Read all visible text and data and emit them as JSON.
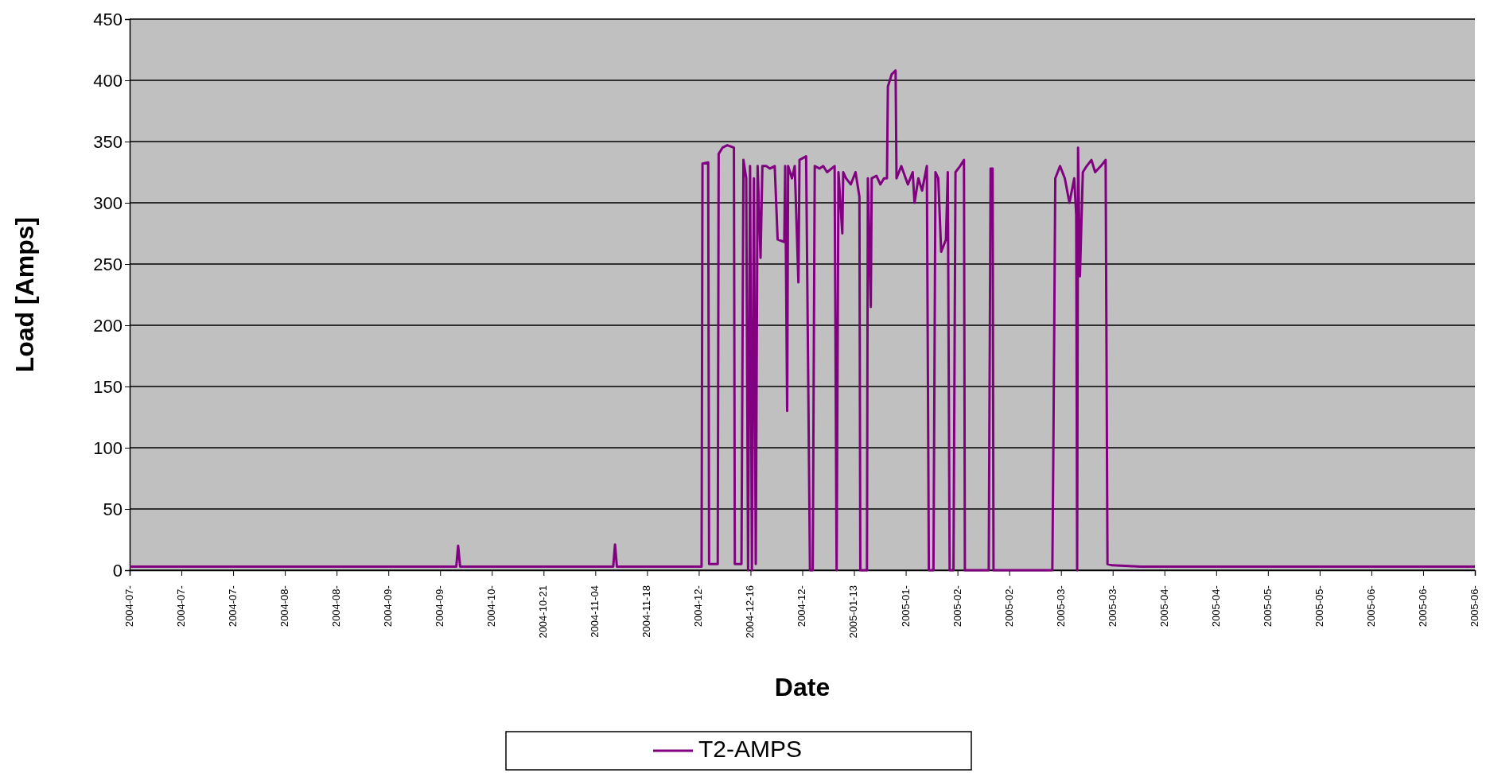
{
  "chart_data": {
    "type": "line",
    "xlabel": "Date",
    "ylabel": "Load [Amps]",
    "xlim": [
      "2004-07-01",
      "2005-06-30"
    ],
    "ylim": [
      0,
      450
    ],
    "yticks": [
      0,
      50,
      100,
      150,
      200,
      250,
      300,
      350,
      400,
      450
    ],
    "xticks": [
      {
        "value": "2004-07-01",
        "label": "2004-07-"
      },
      {
        "value": "2004-07-15",
        "label": "2004-07-"
      },
      {
        "value": "2004-07-29",
        "label": "2004-07-"
      },
      {
        "value": "2004-08-12",
        "label": "2004-08-"
      },
      {
        "value": "2004-08-26",
        "label": "2004-08-"
      },
      {
        "value": "2004-09-09",
        "label": "2004-09-"
      },
      {
        "value": "2004-09-23",
        "label": "2004-09-"
      },
      {
        "value": "2004-10-07",
        "label": "2004-10-"
      },
      {
        "value": "2004-10-21",
        "label": "2004-10-21"
      },
      {
        "value": "2004-11-04",
        "label": "2004-11-04"
      },
      {
        "value": "2004-11-18",
        "label": "2004-11-18"
      },
      {
        "value": "2004-12-02",
        "label": "2004-12-"
      },
      {
        "value": "2004-12-16",
        "label": "2004-12-16"
      },
      {
        "value": "2004-12-30",
        "label": "2004-12-"
      },
      {
        "value": "2005-01-13",
        "label": "2005-01-13"
      },
      {
        "value": "2005-01-27",
        "label": "2005-01-"
      },
      {
        "value": "2005-02-10",
        "label": "2005-02-"
      },
      {
        "value": "2005-02-24",
        "label": "2005-02-"
      },
      {
        "value": "2005-03-10",
        "label": "2005-03-"
      },
      {
        "value": "2005-03-24",
        "label": "2005-03-"
      },
      {
        "value": "2005-04-07",
        "label": "2005-04-"
      },
      {
        "value": "2005-04-21",
        "label": "2005-04-"
      },
      {
        "value": "2005-05-05",
        "label": "2005-05-"
      },
      {
        "value": "2005-05-19",
        "label": "2005-05-"
      },
      {
        "value": "2005-06-02",
        "label": "2005-06-"
      },
      {
        "value": "2005-06-16",
        "label": "2005-06-"
      },
      {
        "value": "2005-06-30",
        "label": "2005-06-"
      }
    ],
    "grid": "y",
    "legend": "bottom",
    "line_style": "solid",
    "x": [
      "2004-07-01T00:00",
      "2004-09-27T09:00",
      "2004-09-27T21:00",
      "2004-09-28T10:00",
      "2004-11-08T20:00",
      "2004-11-09T08:00",
      "2004-11-09T20:00",
      "2004-12-02T18:00",
      "2004-12-03T00:00",
      "2004-12-04T13:00",
      "2004-12-04T19:00",
      "2004-12-07T03:00",
      "2004-12-07T09:00",
      "2004-12-08T10:00",
      "2004-12-09T17:00",
      "2004-12-11T12:00",
      "2004-12-11T18:00",
      "2004-12-13T13:00",
      "2004-12-14T02:00",
      "2004-12-14T20:00",
      "2004-12-15T08:00",
      "2004-12-15T21:00",
      "2004-12-16T09:00",
      "2004-12-16T22:00",
      "2004-12-17T10:00",
      "2004-12-17T22:00",
      "2004-12-18T17:00",
      "2004-12-19T05:00",
      "2004-12-20T06:00",
      "2004-12-21T06:00",
      "2004-12-22T13:00",
      "2004-12-23T08:00",
      "2004-12-25T03:00",
      "2004-12-25T09:00",
      "2004-12-25T22:00",
      "2004-12-26T04:00",
      "2004-12-27T05:00",
      "2004-12-27T23:00",
      "2004-12-28T23:00",
      "2004-12-29T06:00",
      "2004-12-31T01:00",
      "2005-01-01T02:00",
      "2005-01-01T20:00",
      "2005-01-02T09:00",
      "2005-01-03T16:00",
      "2005-01-04T16:00",
      "2005-01-05T17:00",
      "2005-01-07T18:00",
      "2005-01-08T07:00",
      "2005-01-08T19:00",
      "2005-01-09T20:00",
      "2005-01-10T02:00",
      "2005-01-10T20:00",
      "2005-01-12T03:00",
      "2005-01-13T10:00",
      "2005-01-14T11:00",
      "2005-01-14T17:00",
      "2005-01-16T12:00",
      "2005-01-16T18:00",
      "2005-01-17T13:00",
      "2005-01-17T19:00",
      "2005-01-19T02:00",
      "2005-01-20T03:00",
      "2005-01-21T03:00",
      "2005-01-21T22:00",
      "2005-01-22T04:00",
      "2005-01-23T05:00",
      "2005-01-24T06:00",
      "2005-01-24T12:00",
      "2005-01-25T19:00",
      "2005-01-27T14:00",
      "2005-01-28T21:00",
      "2005-01-29T09:00",
      "2005-01-30T10:00",
      "2005-01-31T10:00",
      "2005-02-01T17:00",
      "2005-02-02T06:00",
      "2005-02-03T12:00",
      "2005-02-04T01:00",
      "2005-02-04T19:00",
      "2005-02-05T14:00",
      "2005-02-06T21:00",
      "2005-02-07T09:00",
      "2005-02-07T21:00",
      "2005-02-08T22:00",
      "2005-02-09T11:00",
      "2005-02-10T17:00",
      "2005-02-11T18:00",
      "2005-02-12T00:00",
      "2005-02-18T11:00",
      "2005-02-18T23:00",
      "2005-02-19T12:00",
      "2005-02-19T18:00",
      "2005-03-07T16:00",
      "2005-03-07T22:00",
      "2005-03-08T05:00",
      "2005-03-08T11:00",
      "2005-03-09T18:00",
      "2005-03-11T01:00",
      "2005-03-12T07:00",
      "2005-03-13T14:00",
      "2005-03-14T03:00",
      "2005-03-14T09:00",
      "2005-03-14T15:00",
      "2005-03-15T03:00",
      "2005-03-15T22:00",
      "2005-03-16T23:00",
      "2005-03-18T06:00",
      "2005-03-19T06:00",
      "2005-03-20T19:00",
      "2005-03-22T02:00",
      "2005-03-22T14:00",
      "2005-03-23T21:00",
      "2005-03-31T15:00",
      "2005-06-30T00:00"
    ],
    "series": [
      {
        "name": "T2-AMPS",
        "color": "#800080",
        "values": [
          3,
          3,
          20,
          3,
          3,
          21,
          3,
          3,
          332,
          333,
          5,
          5,
          340,
          345,
          347,
          345,
          5,
          5,
          335,
          320,
          0,
          330,
          0,
          320,
          5,
          330,
          255,
          330,
          330,
          328,
          330,
          270,
          268,
          330,
          130,
          330,
          320,
          330,
          235,
          335,
          338,
          0,
          0,
          330,
          328,
          330,
          325,
          330,
          0,
          325,
          275,
          325,
          320,
          315,
          325,
          305,
          0,
          0,
          320,
          215,
          320,
          322,
          315,
          320,
          320,
          395,
          405,
          408,
          320,
          330,
          315,
          325,
          300,
          320,
          310,
          330,
          0,
          0,
          325,
          320,
          260,
          270,
          325,
          0,
          0,
          325,
          330,
          335,
          0,
          0,
          328,
          328,
          0,
          0,
          90,
          210,
          320,
          330,
          320,
          300,
          320,
          290,
          0,
          345,
          240,
          325,
          330,
          335,
          325,
          330,
          335,
          5,
          4,
          3,
          3
        ]
      }
    ]
  }
}
